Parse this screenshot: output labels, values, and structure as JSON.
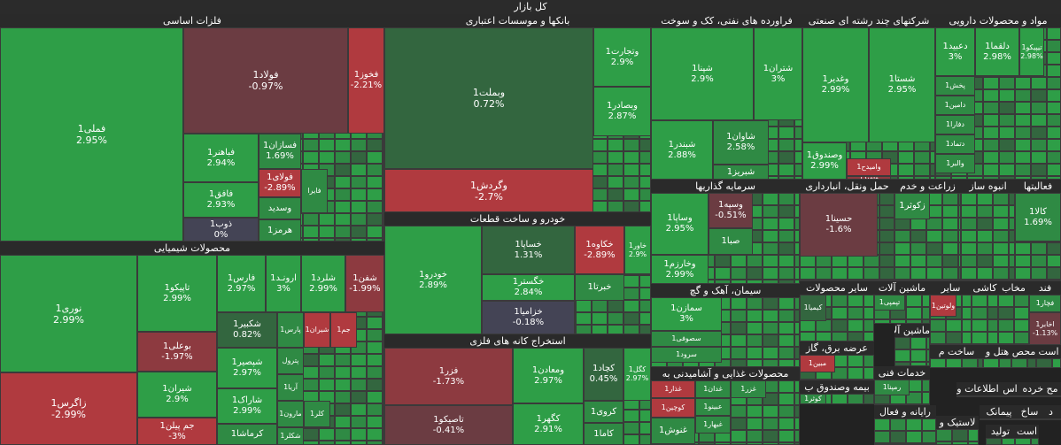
{
  "title": "کل بازار",
  "colors": {
    "up_strong": "#2e9e47",
    "up_mid": "#2f8a44",
    "up_dark": "#33663f",
    "flat": "#444455",
    "down_dark": "#6b3c42",
    "down_mid": "#8d3a40",
    "down_strong": "#b03a3f",
    "border": "#3a3a3a"
  },
  "chart_data": {
    "type": "heatmap",
    "title": "کل بازار",
    "sectors": [
      {
        "name": "فلزات اساسی",
        "items": [
          {
            "s": "فملی1",
            "v": "2.95%",
            "c": "up_strong"
          },
          {
            "s": "فولاد1",
            "v": "-0.97%",
            "c": "down_dark"
          },
          {
            "s": "فخوز1",
            "v": "-2.21%",
            "c": "down_strong"
          },
          {
            "s": "فباهنر1",
            "v": "2.94%",
            "c": "up_strong"
          },
          {
            "s": "فسازان1",
            "v": "1.69%",
            "c": "up_mid"
          },
          {
            "s": "فولای1",
            "v": "-2.89%",
            "c": "down_strong"
          },
          {
            "s": "فافق1",
            "v": "2.93%",
            "c": "up_strong"
          },
          {
            "s": "ذوب1",
            "v": "0%",
            "c": "flat"
          },
          {
            "s": "وسدید",
            "v": "",
            "c": "up_mid"
          },
          {
            "s": "هرمز1",
            "v": "",
            "c": "up_mid"
          },
          {
            "s": "فایرا",
            "v": "",
            "c": "up_mid"
          }
        ]
      },
      {
        "name": "بانکها و موسسات اعتباری",
        "items": [
          {
            "s": "وبملت1",
            "v": "0.72%",
            "c": "up_dark"
          },
          {
            "s": "وتجارت1",
            "v": "2.9%",
            "c": "up_strong"
          },
          {
            "s": "وبصادر1",
            "v": "2.87%",
            "c": "up_strong"
          },
          {
            "s": "وگردش1",
            "v": "-2.7%",
            "c": "down_strong"
          }
        ]
      },
      {
        "name": "فراورده های نفتی، کک و سوخت",
        "items": [
          {
            "s": "شپنا1",
            "v": "2.9%",
            "c": "up_strong"
          },
          {
            "s": "شتران1",
            "v": "3%",
            "c": "up_strong"
          },
          {
            "s": "شبندر1",
            "v": "2.88%",
            "c": "up_strong"
          },
          {
            "s": "شاوان1",
            "v": "2.58%",
            "c": "up_mid"
          },
          {
            "s": "شبریز1",
            "v": "",
            "c": "up_mid"
          }
        ]
      },
      {
        "name": "شرکتهای چند رشته ای صنعتی",
        "items": [
          {
            "s": "وغدیر1",
            "v": "2.99%",
            "c": "up_strong"
          },
          {
            "s": "شستا1",
            "v": "2.95%",
            "c": "up_strong"
          },
          {
            "s": "وصندوق1",
            "v": "2.99%",
            "c": "up_strong"
          },
          {
            "s": "وامیدح1",
            "v": "",
            "c": "down_strong"
          },
          {
            "s": "وامید1",
            "v": "",
            "c": "down_mid"
          }
        ]
      },
      {
        "name": "مواد و محصولات دارویی",
        "items": [
          {
            "s": "دعبید1",
            "v": "3%",
            "c": "up_strong"
          },
          {
            "s": "دلقما1",
            "v": "2.98%",
            "c": "up_strong"
          },
          {
            "s": "تیپیکو1",
            "v": "2.98%",
            "c": "up_strong"
          },
          {
            "s": "پخش1",
            "v": "",
            "c": "up_mid"
          },
          {
            "s": "دامین1",
            "v": "",
            "c": "up_mid"
          },
          {
            "s": "دفارا1",
            "v": "",
            "c": "up_mid"
          },
          {
            "s": "دتماد1",
            "v": "",
            "c": "up_mid"
          },
          {
            "s": "والبر1",
            "v": "",
            "c": "up_mid"
          }
        ]
      },
      {
        "name": "محصولات شیمیایی",
        "items": [
          {
            "s": "نوری1",
            "v": "2.99%",
            "c": "up_strong"
          },
          {
            "s": "تاپیکو1",
            "v": "2.99%",
            "c": "up_strong"
          },
          {
            "s": "فارس1",
            "v": "2.97%",
            "c": "up_strong"
          },
          {
            "s": "ارونـد1",
            "v": "3%",
            "c": "up_strong"
          },
          {
            "s": "شلرد1",
            "v": "2.99%",
            "c": "up_strong"
          },
          {
            "s": "شفن1",
            "v": "-1.99%",
            "c": "down_mid"
          },
          {
            "s": "شکبیر1",
            "v": "0.82%",
            "c": "up_dark"
          },
          {
            "s": "پارس1",
            "v": "",
            "c": "up_mid"
          },
          {
            "s": "شیران1",
            "v": "",
            "c": "down_strong"
          },
          {
            "s": "جم1",
            "v": "",
            "c": "down_strong"
          },
          {
            "s": "بوعلی1",
            "v": "-1.97%",
            "c": "down_mid"
          },
          {
            "s": "شپصیر1",
            "v": "2.97%",
            "c": "up_strong"
          },
          {
            "s": "پترول",
            "v": "",
            "c": "up_mid"
          },
          {
            "s": "آریا1",
            "v": "",
            "c": "up_mid"
          },
          {
            "s": "زاگرس1",
            "v": "-2.99%",
            "c": "down_strong"
          },
          {
            "s": "شیران1",
            "v": "2.9%",
            "c": "up_strong"
          },
          {
            "s": "شاراک1",
            "v": "2.99%",
            "c": "up_strong"
          },
          {
            "s": "جم پیلن1",
            "v": "-3%",
            "c": "down_strong"
          },
          {
            "s": "کرماشا1",
            "v": "",
            "c": "up_mid"
          },
          {
            "s": "مارون1",
            "v": "",
            "c": "up_mid"
          },
          {
            "s": "شکلر1",
            "v": "",
            "c": "up_mid"
          },
          {
            "s": "کلر1",
            "v": "",
            "c": "up_mid"
          }
        ]
      },
      {
        "name": "خودرو و ساخت قطعات",
        "items": [
          {
            "s": "خودرو1",
            "v": "2.89%",
            "c": "up_strong"
          },
          {
            "s": "خساپا1",
            "v": "1.31%",
            "c": "up_dark"
          },
          {
            "s": "خکاوه1",
            "v": "-2.89%",
            "c": "down_strong"
          },
          {
            "s": "خاور1",
            "v": "2.9%",
            "c": "up_strong"
          },
          {
            "s": "خگستر1",
            "v": "2.84%",
            "c": "up_strong"
          },
          {
            "s": "خبرتا1",
            "v": "",
            "c": "up_mid"
          },
          {
            "s": "خزامیا1",
            "v": "-0.18%",
            "c": "flat"
          }
        ]
      },
      {
        "name": "استخراج کانه های فلزی",
        "items": [
          {
            "s": "فزر1",
            "v": "-1.73%",
            "c": "down_mid"
          },
          {
            "s": "ومعادن1",
            "v": "2.97%",
            "c": "up_strong"
          },
          {
            "s": "کچاد1",
            "v": "0.45%",
            "c": "up_dark"
          },
          {
            "s": "کگل1",
            "v": "2.97%",
            "c": "up_strong"
          },
          {
            "s": "تاصیکو1",
            "v": "-0.41%",
            "c": "down_dark"
          },
          {
            "s": "کگهر1",
            "v": "2.91%",
            "c": "up_strong"
          },
          {
            "s": "کروی1",
            "v": "",
            "c": "up_mid"
          },
          {
            "s": "کاما1",
            "v": "",
            "c": "up_mid"
          }
        ]
      },
      {
        "name": "سرمایه گذاریها",
        "items": [
          {
            "s": "وساپا1",
            "v": "2.95%",
            "c": "up_strong"
          },
          {
            "s": "وسپه1",
            "v": "-0.51%",
            "c": "down_dark"
          },
          {
            "s": "صبا1",
            "v": "",
            "c": "up_mid"
          },
          {
            "s": "وخارزم1",
            "v": "2.99%",
            "c": "up_strong"
          }
        ]
      },
      {
        "name": "حمل ونقل، انبارداری",
        "items": [
          {
            "s": "حسینا1",
            "v": "-1.6%",
            "c": "down_dark"
          }
        ]
      },
      {
        "name": "زراعت و خدم",
        "items": [
          {
            "s": "زکوثر1",
            "v": "",
            "c": "up_mid"
          }
        ]
      },
      {
        "name": "انبوه ساز",
        "items": []
      },
      {
        "name": "فعالیتها",
        "items": [
          {
            "s": "کالا1",
            "v": "1.69%",
            "c": "up_mid"
          }
        ]
      },
      {
        "name": "سیمان، آهک و گچ",
        "items": [
          {
            "s": "سمازن1",
            "v": "3%",
            "c": "up_strong"
          },
          {
            "s": "سصوفی1",
            "v": "",
            "c": "up_mid"
          },
          {
            "s": "سرود1",
            "v": "",
            "c": "up_mid"
          }
        ]
      },
      {
        "name": "سایر محصولات",
        "items": [
          {
            "s": "کیمیا1",
            "v": "",
            "c": "up_dark"
          }
        ]
      },
      {
        "name": "ماشین آلات",
        "items": [
          {
            "s": "تپمپی1",
            "v": "",
            "c": "up_mid"
          }
        ]
      },
      {
        "name": "سایر",
        "items": [
          {
            "s": "ولوتین1",
            "v": "",
            "c": "down_strong"
          }
        ]
      },
      {
        "name": "کاشی",
        "items": []
      },
      {
        "name": "مخاب",
        "items": []
      },
      {
        "name": "فند",
        "items": [
          {
            "s": "فچار1",
            "v": "",
            "c": "up_mid"
          },
          {
            "s": "اخابر1",
            "v": "-1.13%",
            "c": "down_dark"
          }
        ]
      },
      {
        "name": "ماشین آلات",
        "items": []
      },
      {
        "name": "عرضه برق، گاز",
        "items": [
          {
            "s": "مبین1",
            "v": "",
            "c": "down_strong"
          }
        ]
      },
      {
        "name": "خدمات فنی",
        "items": [
          {
            "s": "رمپنا1",
            "v": "",
            "c": "up_mid"
          }
        ]
      },
      {
        "name": "ساخت م",
        "items": []
      },
      {
        "name": "هتل و",
        "items": []
      },
      {
        "name": "محص",
        "items": []
      },
      {
        "name": "است",
        "items": []
      },
      {
        "name": "محصولات غذایی و آشامیدنی به",
        "items": [
          {
            "s": "غذار1",
            "v": "",
            "c": "down_strong"
          },
          {
            "s": "غدان1",
            "v": "",
            "c": "up_mid"
          },
          {
            "s": "کوچین1",
            "v": "",
            "c": "down_strong"
          },
          {
            "s": "غنوش1",
            "v": "",
            "c": "up_mid"
          },
          {
            "s": "غبهار1",
            "v": "",
            "c": "up_mid"
          },
          {
            "s": "غزر1",
            "v": "",
            "c": "up_mid"
          },
          {
            "s": "عبینو1",
            "v": "",
            "c": "up_mid"
          }
        ]
      },
      {
        "name": "بیمه وصندوق ب",
        "items": [
          {
            "s": "کوثر1",
            "v": "",
            "c": "up_mid"
          }
        ]
      },
      {
        "name": "اطلاعات و",
        "items": []
      },
      {
        "name": "اس",
        "items": []
      },
      {
        "name": "خرده ف",
        "items": []
      },
      {
        "name": "مح",
        "items": []
      },
      {
        "name": "رایانه و فعال",
        "items": []
      },
      {
        "name": "پیمانک",
        "items": []
      },
      {
        "name": "ساخ",
        "items": []
      },
      {
        "name": "د",
        "items": []
      },
      {
        "name": "لاستیک و",
        "items": []
      },
      {
        "name": "تولید",
        "items": []
      },
      {
        "name": "است",
        "items": []
      }
    ]
  }
}
